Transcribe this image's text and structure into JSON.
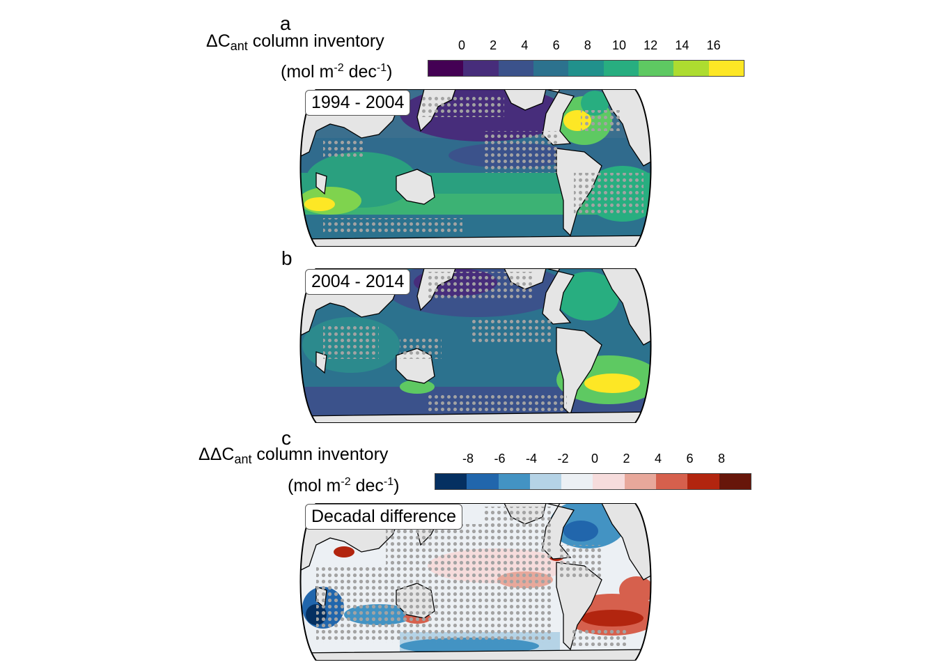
{
  "panel_a": {
    "letter": "a",
    "colorbar_title_prefix": "ΔC",
    "colorbar_title_sub": "ant",
    "colorbar_title_suffix": " column inventory",
    "unit_open": "(mol m",
    "unit_sup1": "-2",
    "unit_mid": " dec",
    "unit_sup2": "-1",
    "unit_close": ")",
    "ticks": [
      "0",
      "2",
      "4",
      "6",
      "8",
      "10",
      "12",
      "14",
      "16"
    ],
    "colors": [
      "#440154",
      "#472d7b",
      "#3b528b",
      "#2c728e",
      "#21918c",
      "#28ae80",
      "#5ec962",
      "#addc30",
      "#fde725"
    ],
    "map_label": "1994 - 2004"
  },
  "panel_b": {
    "letter": "b",
    "map_label": "2004 - 2014"
  },
  "panel_c": {
    "letter": "c",
    "colorbar_title_prefix": "ΔΔC",
    "colorbar_title_sub": "ant",
    "colorbar_title_suffix": " column inventory",
    "unit_open": "(mol m",
    "unit_sup1": "-2",
    "unit_mid": " dec",
    "unit_sup2": "-1",
    "unit_close": ")",
    "ticks": [
      "-8",
      "-6",
      "-4",
      "-2",
      "0",
      "2",
      "4",
      "6",
      "8"
    ],
    "colors": [
      "#053061",
      "#2166ac",
      "#4393c3",
      "#b5d3e6",
      "#ecf0f4",
      "#f6dcdc",
      "#e8a89b",
      "#d6604d",
      "#b2250f",
      "#67160a"
    ],
    "map_label": "Decadal difference"
  },
  "map_style": {
    "land": "#e5e5e5",
    "coast": "#000000",
    "stipple": "#a3a3a3"
  }
}
